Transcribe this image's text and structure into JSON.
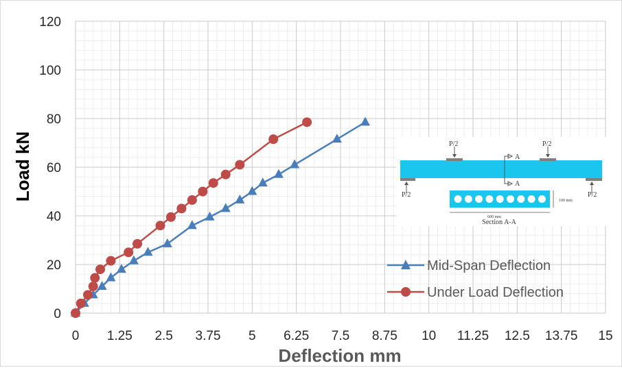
{
  "chart_data": {
    "type": "line",
    "xlabel": "Deflection mm",
    "ylabel": "Load kN",
    "xlim": [
      0,
      15
    ],
    "ylim": [
      0,
      120
    ],
    "x_ticks": [
      "0",
      "1.25",
      "2.5",
      "3.75",
      "5",
      "6.25",
      "7.5",
      "8.75",
      "10",
      "11.25",
      "12.5",
      "13.75",
      "15"
    ],
    "y_ticks": [
      "0",
      "20",
      "40",
      "60",
      "80",
      "100",
      "120"
    ],
    "grid": true,
    "legend_position": "bottom-right",
    "series": [
      {
        "name": "Mid-Span Deflection",
        "color": "#4a7ebb",
        "marker": "triangle",
        "x": [
          0,
          0.25,
          0.5,
          0.75,
          1.0,
          1.3,
          1.65,
          2.05,
          2.6,
          3.3,
          3.8,
          4.25,
          4.65,
          5.0,
          5.3,
          5.75,
          6.2,
          7.4,
          8.2
        ],
        "y": [
          0,
          4,
          7.5,
          11,
          14.5,
          18,
          21.5,
          25,
          28.5,
          36,
          39.5,
          43,
          46.5,
          50,
          53.5,
          57,
          61,
          71.5,
          78.5
        ]
      },
      {
        "name": "Under Load Deflection",
        "color": "#be4b48",
        "marker": "circle",
        "x": [
          0,
          0.15,
          0.35,
          0.5,
          0.55,
          0.7,
          1.0,
          1.5,
          1.75,
          2.4,
          2.7,
          3.0,
          3.3,
          3.6,
          3.9,
          4.25,
          4.65,
          5.6,
          6.55
        ],
        "y": [
          0,
          4,
          7.5,
          11,
          14.5,
          18,
          21.5,
          25,
          28.5,
          36,
          39.5,
          43,
          46.5,
          50,
          53.5,
          57,
          61,
          71.5,
          78.5
        ]
      }
    ]
  },
  "inset": {
    "load_left": "P/2",
    "load_right": "P/2",
    "support_left": "P/2",
    "support_right": "P/2",
    "section_mark_top": "A",
    "section_mark_bottom": "A",
    "section_width": "600 mm",
    "section_depth": "100 mm",
    "section_title": "Section A-A",
    "beam_color": "#1ac6ee"
  }
}
